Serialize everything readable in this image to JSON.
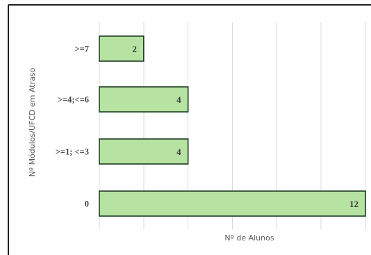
{
  "chart_data": {
    "type": "bar",
    "orientation": "horizontal",
    "categories": [
      ">=7",
      ">=4;<=6",
      ">=1; <=3",
      "0"
    ],
    "values": [
      2,
      4,
      4,
      12
    ],
    "data_labels": [
      "2",
      "4",
      "4",
      "12"
    ],
    "xlabel": "Nº de Alunos",
    "ylabel": "Nº Módulos/UFCD em Atraso",
    "xlim": [
      0,
      12
    ],
    "x_gridlines": [
      0,
      2,
      4,
      6,
      8,
      10,
      12
    ],
    "grid": true,
    "legend": "none",
    "colors": {
      "bar_fill": "#b6e3a2",
      "bar_stroke": "#1d3b22",
      "grid": "#d9d9d9",
      "text": "#3f3f3f"
    }
  }
}
